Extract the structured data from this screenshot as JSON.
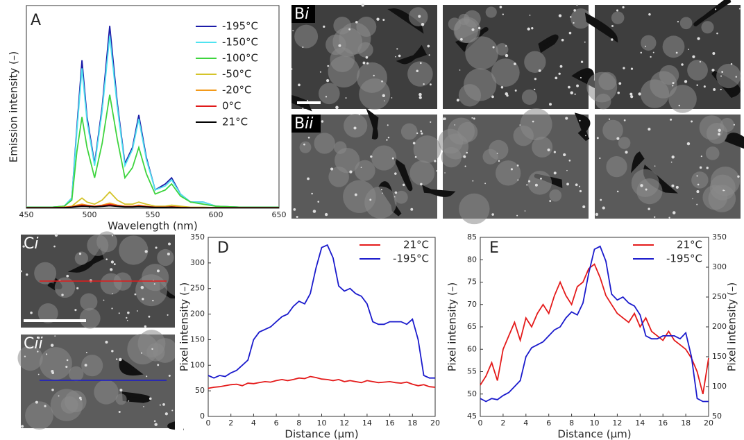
{
  "image_labels": [
    [
      "B",
      "i"
    ],
    [
      "B",
      "ii"
    ],
    [
      "C",
      "i"
    ],
    [
      "C",
      "ii"
    ]
  ],
  "chart_data": [
    {
      "type": "line",
      "label": "A",
      "xlabel": "Wavelength (nm)",
      "ylabel": "Emission intensity (–)",
      "xlim": [
        450,
        650
      ],
      "xticks": [
        450,
        500,
        550,
        600,
        650
      ],
      "ylim": [
        0,
        100
      ],
      "legend": "upper right",
      "x": [
        450,
        470,
        480,
        486,
        490,
        494,
        498,
        504,
        510,
        516,
        522,
        528,
        534,
        539,
        545,
        552,
        560,
        565,
        572,
        580,
        590,
        600,
        620,
        650
      ],
      "series": [
        {
          "name": "-195°C",
          "color": "#1c1ca8",
          "values": [
            0.5,
            0.5,
            1,
            5,
            40,
            73,
            45,
            22,
            50,
            90,
            52,
            22,
            30,
            46,
            25,
            9,
            12,
            15,
            7,
            3,
            3,
            1,
            0.5,
            0.5
          ]
        },
        {
          "name": "-150°C",
          "color": "#4fe3f0",
          "values": [
            0.5,
            0.5,
            1,
            5,
            38,
            69,
            43,
            21,
            48,
            85,
            50,
            21,
            29,
            44,
            24,
            9,
            11,
            14,
            7,
            3,
            3,
            1,
            0.5,
            0.5
          ]
        },
        {
          "name": "-100°C",
          "color": "#3ed43e",
          "values": [
            0.5,
            0.5,
            1,
            4,
            28,
            45,
            30,
            15,
            32,
            56,
            34,
            15,
            20,
            30,
            17,
            7,
            9,
            12,
            6,
            3,
            2,
            1,
            0.5,
            0.5
          ]
        },
        {
          "name": "-50°C",
          "color": "#d4c42a",
          "values": [
            0.3,
            0.3,
            0.5,
            1,
            3,
            5,
            3,
            2,
            4,
            8,
            4,
            2,
            2,
            3,
            2,
            1,
            1,
            1.5,
            1,
            0.5,
            0.5,
            0.3,
            0.3,
            0.3
          ]
        },
        {
          "name": "-20°C",
          "color": "#f39a1a",
          "values": [
            0.3,
            0.3,
            0.5,
            0.8,
            1.5,
            2,
            1.5,
            1,
            1.5,
            2.5,
            1.5,
            1,
            1,
            1.5,
            1,
            0.5,
            0.5,
            0.8,
            0.5,
            0.3,
            0.3,
            0.3,
            0.3,
            0.3
          ]
        },
        {
          "name": "0°C",
          "color": "#e01a1a",
          "values": [
            0.3,
            0.3,
            0.4,
            0.6,
            1,
            1.5,
            1.2,
            0.9,
            1.2,
            1.8,
            1.2,
            0.8,
            0.8,
            1.1,
            0.8,
            0.5,
            0.5,
            0.6,
            0.4,
            0.3,
            0.3,
            0.3,
            0.3,
            0.3
          ]
        },
        {
          "name": "21°C",
          "color": "#000000",
          "values": [
            0.2,
            0.2,
            0.3,
            0.5,
            0.8,
            1,
            0.9,
            0.7,
            0.9,
            1.2,
            0.9,
            0.6,
            0.6,
            0.8,
            0.6,
            0.4,
            0.4,
            0.5,
            0.3,
            0.2,
            0.2,
            0.2,
            0.2,
            0.2
          ]
        }
      ]
    },
    {
      "type": "line",
      "label": "D",
      "xlabel": "Distance  (µm)",
      "ylabel": "Pixel intensity (–)",
      "xlim": [
        0,
        20
      ],
      "xticks": [
        0,
        2,
        4,
        6,
        8,
        10,
        12,
        14,
        16,
        18,
        20
      ],
      "ylim": [
        0,
        350
      ],
      "yticks": [
        0,
        50,
        100,
        150,
        200,
        250,
        300,
        350
      ],
      "legend": "upper right",
      "x": [
        0,
        0.5,
        1,
        1.5,
        2,
        2.5,
        3,
        3.5,
        4,
        4.5,
        5,
        5.5,
        6,
        6.5,
        7,
        7.5,
        8,
        8.5,
        9,
        9.5,
        10,
        10.5,
        11,
        11.5,
        12,
        12.5,
        13,
        13.5,
        14,
        14.5,
        15,
        15.5,
        16,
        16.5,
        17,
        17.5,
        18,
        18.5,
        19,
        19.5,
        20
      ],
      "series": [
        {
          "name": "21°C",
          "color": "#e41a1a",
          "values": [
            55,
            57,
            58,
            60,
            62,
            63,
            60,
            65,
            64,
            66,
            68,
            67,
            70,
            72,
            70,
            72,
            75,
            74,
            78,
            76,
            73,
            72,
            70,
            72,
            68,
            70,
            68,
            66,
            70,
            68,
            66,
            67,
            68,
            66,
            65,
            67,
            63,
            60,
            62,
            58,
            57
          ]
        },
        {
          "name": "-195°C",
          "color": "#1a1acc",
          "values": [
            80,
            75,
            80,
            78,
            85,
            90,
            100,
            110,
            150,
            165,
            170,
            175,
            185,
            195,
            200,
            215,
            225,
            220,
            240,
            290,
            330,
            335,
            310,
            255,
            245,
            250,
            240,
            235,
            220,
            185,
            180,
            180,
            185,
            185,
            185,
            180,
            190,
            150,
            80,
            75,
            75
          ]
        }
      ]
    },
    {
      "type": "line",
      "label": "E",
      "xlabel": "Distance (µm)",
      "ylabel": "Pixel intensity (–)",
      "y2label": "Pixel intensity (–)",
      "xlim": [
        0,
        20
      ],
      "xticks": [
        0,
        2,
        4,
        6,
        8,
        10,
        12,
        14,
        16,
        18,
        20
      ],
      "ylim": [
        45,
        85
      ],
      "yticks": [
        45,
        50,
        55,
        60,
        65,
        70,
        75,
        80,
        85
      ],
      "y2lim": [
        50,
        350
      ],
      "y2ticks": [
        50,
        100,
        150,
        200,
        250,
        300,
        350
      ],
      "legend": "upper right",
      "x": [
        0,
        0.5,
        1,
        1.5,
        2,
        2.5,
        3,
        3.5,
        4,
        4.5,
        5,
        5.5,
        6,
        6.5,
        7,
        7.5,
        8,
        8.5,
        9,
        9.5,
        10,
        10.5,
        11,
        11.5,
        12,
        12.5,
        13,
        13.5,
        14,
        14.5,
        15,
        15.5,
        16,
        16.5,
        17,
        17.5,
        18,
        18.5,
        19,
        19.5,
        20
      ],
      "series": [
        {
          "name": "21°C",
          "color": "#e41a1a",
          "values": [
            52,
            54,
            57,
            53,
            60,
            63,
            66,
            62,
            67,
            65,
            68,
            70,
            68,
            72,
            75,
            72,
            70,
            74,
            75,
            78,
            79,
            76,
            72,
            70,
            68,
            67,
            66,
            68,
            65,
            67,
            64,
            63,
            62,
            64,
            62,
            61,
            60,
            58,
            55,
            50,
            58
          ]
        },
        {
          "name": "-195°C",
          "color": "#1a1acc",
          "axis": "y2",
          "values": [
            80,
            75,
            80,
            78,
            85,
            90,
            100,
            110,
            150,
            165,
            170,
            175,
            185,
            195,
            200,
            215,
            225,
            220,
            240,
            290,
            330,
            335,
            310,
            255,
            245,
            250,
            240,
            235,
            220,
            185,
            180,
            180,
            185,
            185,
            185,
            180,
            190,
            150,
            80,
            75,
            75
          ]
        }
      ]
    }
  ]
}
